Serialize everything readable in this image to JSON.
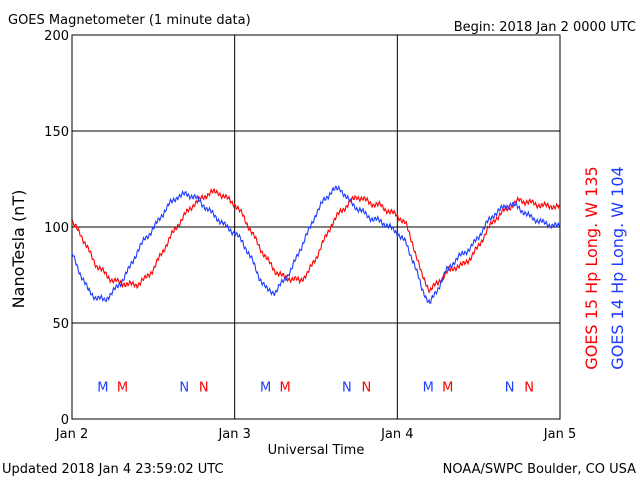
{
  "header": {
    "title": "GOES Magnetometer (1 minute data)",
    "begin": "Begin:  2018 Jan 2 0000 UTC"
  },
  "footer": {
    "updated": "Updated 2018 Jan  4 23:59:02 UTC",
    "credit": "NOAA/SWPC Boulder, CO USA"
  },
  "colors": {
    "goes15": "#ff0000",
    "goes14": "#1e3cff"
  },
  "chart_data": {
    "type": "line",
    "title": "GOES Magnetometer (1 minute data)",
    "xlabel": "Universal Time",
    "ylabel": "NanoTesla (nT)",
    "xlim": [
      0,
      3
    ],
    "ylim": [
      0,
      200
    ],
    "grid": true,
    "x_ticks": [
      {
        "value": 0,
        "label": "Jan 2"
      },
      {
        "value": 1,
        "label": "Jan 3"
      },
      {
        "value": 2,
        "label": "Jan 4"
      },
      {
        "value": 3,
        "label": "Jan 5"
      }
    ],
    "y_ticks": [
      0,
      50,
      100,
      150,
      200
    ],
    "x_unit_note": "days since 2018 Jan 2 0000 UTC",
    "series": [
      {
        "name": "GOES 15 Hp  Long. W 135",
        "color": "#ff0000",
        "x": [
          0,
          0.05,
          0.1,
          0.15,
          0.2,
          0.25,
          0.3,
          0.35,
          0.4,
          0.45,
          0.5,
          0.55,
          0.6,
          0.65,
          0.7,
          0.75,
          0.8,
          0.85,
          0.9,
          0.95,
          1.0,
          1.05,
          1.1,
          1.15,
          1.2,
          1.25,
          1.3,
          1.35,
          1.4,
          1.45,
          1.5,
          1.55,
          1.6,
          1.65,
          1.7,
          1.75,
          1.8,
          1.85,
          1.9,
          1.95,
          2.0,
          2.05,
          2.1,
          2.15,
          2.2,
          2.25,
          2.3,
          2.35,
          2.4,
          2.45,
          2.5,
          2.55,
          2.6,
          2.65,
          2.7,
          2.75,
          2.8,
          2.85,
          2.9,
          2.95,
          3.0
        ],
        "values": [
          102,
          97,
          88,
          80,
          76,
          72,
          71,
          70,
          70,
          73,
          78,
          86,
          94,
          101,
          107,
          112,
          115,
          118,
          118,
          115,
          112,
          106,
          98,
          90,
          83,
          77,
          74,
          73,
          72,
          76,
          84,
          93,
          102,
          108,
          112,
          116,
          114,
          112,
          111,
          108,
          106,
          102,
          90,
          75,
          67,
          71,
          76,
          79,
          80,
          84,
          90,
          98,
          104,
          108,
          111,
          114,
          113,
          112,
          111,
          111,
          110
        ]
      },
      {
        "name": "GOES 14 Hp  Long. W 104",
        "color": "#1e3cff",
        "x": [
          0,
          0.05,
          0.1,
          0.15,
          0.2,
          0.25,
          0.3,
          0.35,
          0.4,
          0.45,
          0.5,
          0.55,
          0.6,
          0.65,
          0.7,
          0.75,
          0.8,
          0.85,
          0.9,
          0.95,
          1.0,
          1.05,
          1.1,
          1.15,
          1.2,
          1.25,
          1.3,
          1.35,
          1.4,
          1.45,
          1.5,
          1.55,
          1.6,
          1.65,
          1.7,
          1.75,
          1.8,
          1.85,
          1.9,
          1.95,
          2.0,
          2.05,
          2.1,
          2.15,
          2.2,
          2.25,
          2.3,
          2.35,
          2.4,
          2.45,
          2.5,
          2.55,
          2.6,
          2.65,
          2.7,
          2.75,
          2.8,
          2.85,
          2.9,
          2.95,
          3.0
        ],
        "values": [
          86,
          76,
          67,
          63,
          62,
          66,
          71,
          78,
          87,
          94,
          99,
          106,
          112,
          116,
          117,
          116,
          112,
          108,
          104,
          100,
          97,
          92,
          84,
          74,
          67,
          66,
          72,
          78,
          88,
          97,
          107,
          114,
          119,
          120,
          114,
          110,
          107,
          104,
          103,
          100,
          97,
          92,
          82,
          68,
          60,
          68,
          77,
          82,
          86,
          89,
          95,
          102,
          107,
          110,
          112,
          110,
          106,
          104,
          102,
          101,
          100
        ]
      }
    ],
    "markers": [
      {
        "label": "M",
        "x": 0.19,
        "series": "GOES 14 Hp  Long. W 104"
      },
      {
        "label": "M",
        "x": 0.31,
        "series": "GOES 15 Hp  Long. W 135"
      },
      {
        "label": "N",
        "x": 0.69,
        "series": "GOES 14 Hp  Long. W 104"
      },
      {
        "label": "N",
        "x": 0.81,
        "series": "GOES 15 Hp  Long. W 135"
      },
      {
        "label": "M",
        "x": 1.19,
        "series": "GOES 14 Hp  Long. W 104"
      },
      {
        "label": "M",
        "x": 1.31,
        "series": "GOES 15 Hp  Long. W 135"
      },
      {
        "label": "N",
        "x": 1.69,
        "series": "GOES 14 Hp  Long. W 104"
      },
      {
        "label": "N",
        "x": 1.81,
        "series": "GOES 15 Hp  Long. W 135"
      },
      {
        "label": "M",
        "x": 2.19,
        "series": "GOES 14 Hp  Long. W 104"
      },
      {
        "label": "M",
        "x": 2.31,
        "series": "GOES 15 Hp  Long. W 135"
      },
      {
        "label": "N",
        "x": 2.69,
        "series": "GOES 14 Hp  Long. W 104"
      },
      {
        "label": "N",
        "x": 2.81,
        "series": "GOES 15 Hp  Long. W 135"
      }
    ],
    "marker_level": 17
  }
}
